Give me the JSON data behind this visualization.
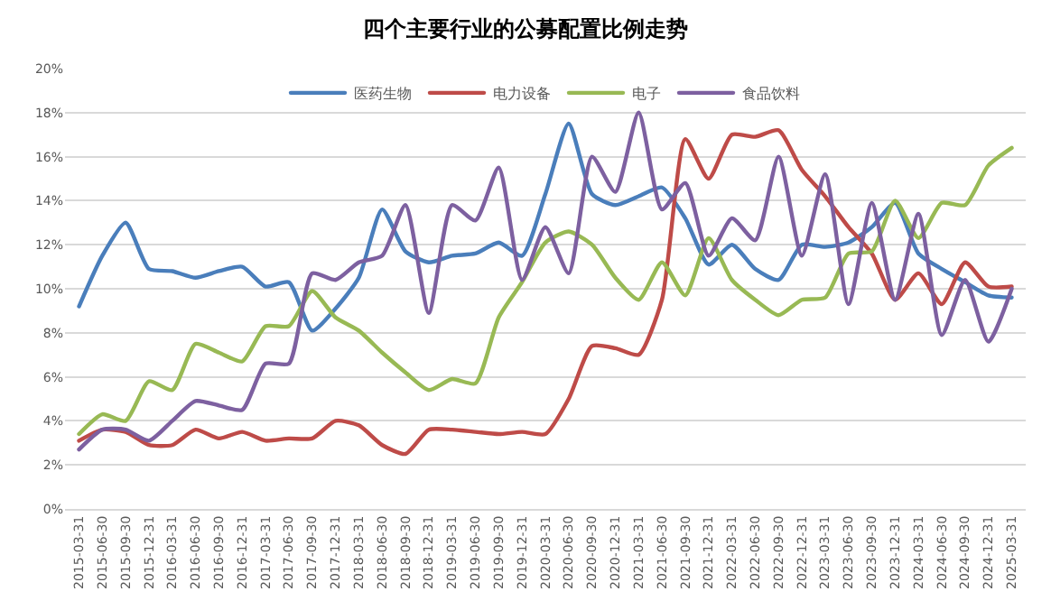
{
  "chart_data": {
    "type": "line",
    "title": "四个主要行业的公募配置比例走势",
    "categories": [
      "2015-03-31",
      "2015-06-30",
      "2015-09-30",
      "2015-12-31",
      "2016-03-31",
      "2016-06-30",
      "2016-09-30",
      "2016-12-31",
      "2017-03-31",
      "2017-06-30",
      "2017-09-30",
      "2017-12-31",
      "2018-03-31",
      "2018-06-30",
      "2018-09-30",
      "2018-12-31",
      "2019-03-31",
      "2019-06-30",
      "2019-09-30",
      "2019-12-31",
      "2020-03-31",
      "2020-06-30",
      "2020-09-30",
      "2020-12-31",
      "2021-03-31",
      "2021-06-30",
      "2021-09-30",
      "2021-12-31",
      "2022-03-31",
      "2022-06-30",
      "2022-09-30",
      "2022-12-31",
      "2023-03-31",
      "2023-06-30",
      "2023-09-30",
      "2023-12-31",
      "2024-03-31",
      "2024-06-30",
      "2024-09-30",
      "2024-12-31",
      "2025-03-31"
    ],
    "series": [
      {
        "name": "医药生物",
        "color": "#4a7ebb",
        "values": [
          9.2,
          11.5,
          13.0,
          10.9,
          10.8,
          10.5,
          10.8,
          11.0,
          10.1,
          10.3,
          8.1,
          9.1,
          10.5,
          13.6,
          11.7,
          11.2,
          11.5,
          11.6,
          12.1,
          11.5,
          14.3,
          17.5,
          14.3,
          13.8,
          14.2,
          14.6,
          13.2,
          11.1,
          12.0,
          10.9,
          10.4,
          12.0,
          11.9,
          12.1,
          12.8,
          13.9,
          11.6,
          10.9,
          10.3,
          9.7,
          9.6
        ]
      },
      {
        "name": "电力设备",
        "color": "#be4b48",
        "values": [
          3.1,
          3.6,
          3.5,
          2.9,
          2.9,
          3.6,
          3.2,
          3.5,
          3.1,
          3.2,
          3.2,
          4.0,
          3.8,
          2.9,
          2.5,
          3.6,
          3.6,
          3.5,
          3.4,
          3.5,
          3.4,
          5.0,
          7.4,
          7.3,
          7.0,
          9.5,
          16.8,
          15.0,
          17.0,
          16.9,
          17.2,
          15.4,
          14.2,
          12.8,
          11.6,
          9.5,
          10.7,
          9.3,
          11.2,
          10.1,
          10.1
        ]
      },
      {
        "name": "电子",
        "color": "#98b954",
        "values": [
          3.4,
          4.3,
          4.0,
          5.8,
          5.4,
          7.5,
          7.1,
          6.7,
          8.3,
          8.3,
          9.9,
          8.7,
          8.1,
          7.1,
          6.2,
          5.4,
          5.9,
          5.7,
          8.7,
          10.3,
          12.1,
          12.6,
          12.0,
          10.5,
          9.5,
          11.2,
          9.7,
          12.3,
          10.4,
          9.5,
          8.8,
          9.5,
          9.6,
          11.6,
          11.7,
          14.0,
          12.3,
          13.9,
          13.8,
          15.6,
          16.4
        ]
      },
      {
        "name": "食品饮料",
        "color": "#7d60a0",
        "values": [
          2.7,
          3.6,
          3.6,
          3.1,
          4.0,
          4.9,
          4.7,
          4.5,
          6.6,
          6.6,
          10.7,
          10.4,
          11.2,
          11.5,
          13.8,
          8.9,
          13.8,
          13.1,
          15.5,
          10.4,
          12.8,
          10.7,
          16.0,
          14.4,
          18.0,
          13.6,
          14.8,
          11.5,
          13.2,
          12.2,
          16.0,
          11.5,
          15.2,
          9.3,
          13.9,
          9.5,
          13.4,
          7.9,
          10.4,
          7.6,
          10.0
        ]
      }
    ],
    "ylim": [
      0,
      20
    ],
    "yticks": [
      {
        "value": 0,
        "label": "0%"
      },
      {
        "value": 2,
        "label": "2%"
      },
      {
        "value": 4,
        "label": "4%"
      },
      {
        "value": 6,
        "label": "6%"
      },
      {
        "value": 8,
        "label": "8%"
      },
      {
        "value": 10,
        "label": "10%"
      },
      {
        "value": 12,
        "label": "12%"
      },
      {
        "value": 14,
        "label": "14%"
      },
      {
        "value": 16,
        "label": "16%"
      },
      {
        "value": 18,
        "label": "18%"
      },
      {
        "value": 20,
        "label": "20%"
      }
    ],
    "grid": "y",
    "legend": "top",
    "marker": "none",
    "line_style": "solid"
  }
}
